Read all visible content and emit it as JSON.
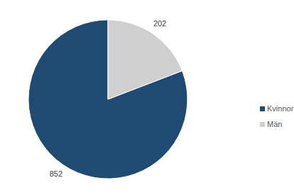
{
  "chart_data": {
    "type": "pie",
    "categories": [
      "Kvinnor",
      "Män"
    ],
    "values": [
      852,
      202
    ],
    "colors": [
      "#1f4a72",
      "#d0cfcf"
    ],
    "data_labels": true,
    "legend": "right"
  }
}
